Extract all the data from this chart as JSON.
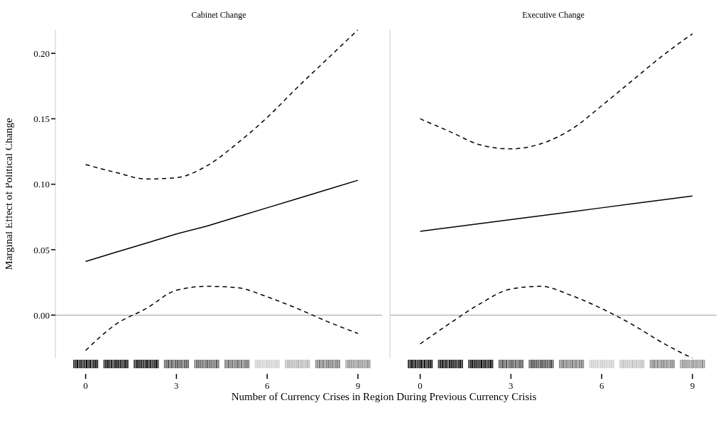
{
  "chart_data": [
    {
      "type": "line",
      "title": "Cabinet Change",
      "ylim": [
        -0.033,
        0.218
      ],
      "xlabel": "Number of Currency Crises in Region During Previous Currency Crisis",
      "ylabel": "Marginal Effect of Political Change",
      "x": [
        0,
        1,
        2,
        3,
        4,
        5,
        6,
        7,
        8,
        9
      ],
      "xlim": [
        -1,
        9.8
      ],
      "xticks": [
        0,
        3,
        6,
        9
      ],
      "yticks": [
        {
          "value": 0,
          "label": "0.00"
        },
        {
          "value": 0.05,
          "label": "0.05"
        },
        {
          "value": 0.1,
          "label": "0.10"
        },
        {
          "value": 0.15,
          "label": "0.15"
        },
        {
          "value": 0.2,
          "label": "0.20"
        }
      ],
      "grid": false,
      "legend": false,
      "line_style": "solid",
      "marker": "none",
      "series": [
        {
          "color": "#000000",
          "values": [
            0.041,
            0.048,
            0.055,
            0.062,
            0.068,
            0.075,
            0.082,
            0.089,
            0.096,
            0.103
          ]
        },
        {
          "color": "#000000",
          "line_style": "dashed",
          "values": [
            -0.027,
            -0.007,
            0.005,
            0.019,
            0.022,
            0.021,
            0.014,
            0.005,
            -0.005,
            -0.014
          ]
        },
        {
          "color": "#000000",
          "line_style": "dashed",
          "values": [
            0.115,
            0.109,
            0.104,
            0.105,
            0.114,
            0.131,
            0.151,
            0.174,
            0.196,
            0.218
          ]
        }
      ],
      "ref_lines": [
        {
          "axis": "y",
          "value": 0,
          "color": "#bbbbbb"
        }
      ]
    },
    {
      "type": "line",
      "title": "Executive Change",
      "ylim": [
        -0.033,
        0.218
      ],
      "x": [
        0,
        1,
        2,
        3,
        4,
        5,
        6,
        7,
        8,
        9
      ],
      "xlim": [
        -1,
        9.8
      ],
      "xticks": [
        0,
        3,
        6,
        9
      ],
      "tick_labels": "x",
      "grid": false,
      "legend": false,
      "line_style": "solid",
      "marker": "none",
      "series": [
        {
          "color": "#000000",
          "values": [
            0.064,
            0.067,
            0.07,
            0.073,
            0.076,
            0.079,
            0.082,
            0.085,
            0.088,
            0.091
          ]
        },
        {
          "color": "#000000",
          "line_style": "dashed",
          "values": [
            -0.022,
            -0.006,
            0.009,
            0.02,
            0.022,
            0.015,
            0.005,
            -0.007,
            -0.021,
            -0.033
          ]
        },
        {
          "color": "#000000",
          "line_style": "dashed",
          "values": [
            0.15,
            0.14,
            0.13,
            0.127,
            0.131,
            0.142,
            0.16,
            0.179,
            0.198,
            0.215
          ]
        }
      ],
      "ref_lines": [
        {
          "axis": "y",
          "value": 0,
          "color": "#bbbbbb"
        }
      ]
    }
  ]
}
